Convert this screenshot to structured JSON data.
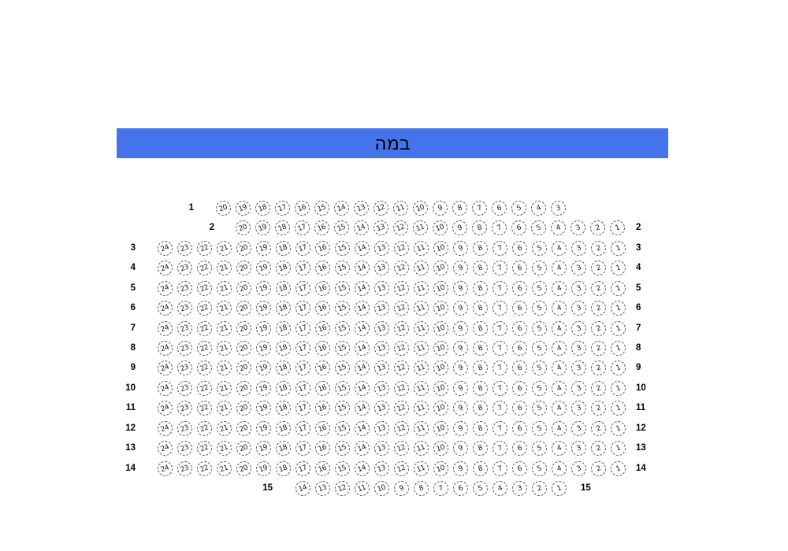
{
  "stage": {
    "label": "במה"
  },
  "colors": {
    "stage_bg": "#4573e9",
    "stage_text": "#000000",
    "seat_border": "#555555",
    "seat_number": "#1a1a1a",
    "row_label": "#000000",
    "background": "#ffffff"
  },
  "seatmap": {
    "total_seats": 340,
    "rows": [
      {
        "left_label": "1",
        "right_label": null,
        "seats": [
          20,
          19,
          18,
          17,
          16,
          15,
          14,
          13,
          12,
          11,
          10,
          9,
          8,
          7,
          6,
          5,
          4,
          3
        ]
      },
      {
        "left_label": "2",
        "right_label": "2",
        "seats": [
          20,
          19,
          18,
          17,
          16,
          15,
          14,
          13,
          12,
          11,
          10,
          9,
          8,
          7,
          6,
          5,
          4,
          3,
          2,
          1
        ]
      },
      {
        "left_label": "3",
        "right_label": "3",
        "seats": [
          24,
          23,
          22,
          21,
          20,
          19,
          18,
          17,
          16,
          15,
          14,
          13,
          12,
          11,
          10,
          9,
          8,
          7,
          6,
          5,
          4,
          3,
          2,
          1
        ]
      },
      {
        "left_label": "4",
        "right_label": "4",
        "seats": [
          24,
          23,
          22,
          21,
          20,
          19,
          18,
          17,
          16,
          15,
          14,
          13,
          12,
          11,
          10,
          9,
          8,
          7,
          6,
          5,
          4,
          3,
          2,
          1
        ]
      },
      {
        "left_label": "5",
        "right_label": "5",
        "seats": [
          24,
          23,
          22,
          21,
          20,
          19,
          18,
          17,
          16,
          15,
          14,
          13,
          12,
          11,
          10,
          9,
          8,
          7,
          6,
          5,
          4,
          3,
          2,
          1
        ]
      },
      {
        "left_label": "6",
        "right_label": "6",
        "seats": [
          24,
          23,
          22,
          21,
          20,
          19,
          18,
          17,
          16,
          15,
          14,
          13,
          12,
          11,
          10,
          9,
          8,
          7,
          6,
          5,
          4,
          3,
          2,
          1
        ]
      },
      {
        "left_label": "7",
        "right_label": "7",
        "seats": [
          24,
          23,
          22,
          21,
          20,
          19,
          18,
          17,
          16,
          15,
          14,
          13,
          12,
          11,
          10,
          9,
          8,
          7,
          6,
          5,
          4,
          3,
          2,
          1
        ]
      },
      {
        "left_label": "8",
        "right_label": "8",
        "seats": [
          24,
          23,
          22,
          21,
          20,
          19,
          18,
          17,
          16,
          15,
          14,
          13,
          12,
          11,
          10,
          9,
          8,
          7,
          6,
          5,
          4,
          3,
          2,
          1
        ]
      },
      {
        "left_label": "9",
        "right_label": "9",
        "seats": [
          24,
          23,
          22,
          21,
          20,
          19,
          18,
          17,
          16,
          15,
          14,
          13,
          12,
          11,
          10,
          9,
          8,
          7,
          6,
          5,
          4,
          3,
          2,
          1
        ]
      },
      {
        "left_label": "10",
        "right_label": "10",
        "seats": [
          24,
          23,
          22,
          21,
          20,
          19,
          18,
          17,
          16,
          15,
          14,
          13,
          12,
          11,
          10,
          9,
          8,
          7,
          6,
          5,
          4,
          3,
          2,
          1
        ]
      },
      {
        "left_label": "11",
        "right_label": "11",
        "seats": [
          24,
          23,
          22,
          21,
          20,
          19,
          18,
          17,
          16,
          15,
          14,
          13,
          12,
          11,
          10,
          9,
          8,
          7,
          6,
          5,
          4,
          3,
          2,
          1
        ]
      },
      {
        "left_label": "12",
        "right_label": "12",
        "seats": [
          24,
          23,
          22,
          21,
          20,
          19,
          18,
          17,
          16,
          15,
          14,
          13,
          12,
          11,
          10,
          9,
          8,
          7,
          6,
          5,
          4,
          3,
          2,
          1
        ]
      },
      {
        "left_label": "13",
        "right_label": "13",
        "seats": [
          24,
          23,
          22,
          21,
          20,
          19,
          18,
          17,
          16,
          15,
          14,
          13,
          12,
          11,
          10,
          9,
          8,
          7,
          6,
          5,
          4,
          3,
          2,
          1
        ]
      },
      {
        "left_label": "14",
        "right_label": "14",
        "seats": [
          24,
          23,
          22,
          21,
          20,
          19,
          18,
          17,
          16,
          15,
          14,
          13,
          12,
          11,
          10,
          9,
          8,
          7,
          6,
          5,
          4,
          3,
          2,
          1
        ]
      },
      {
        "left_label": "15",
        "right_label": "15",
        "seats": [
          14,
          13,
          12,
          11,
          10,
          9,
          8,
          7,
          6,
          5,
          4,
          3,
          2,
          1
        ]
      }
    ]
  }
}
